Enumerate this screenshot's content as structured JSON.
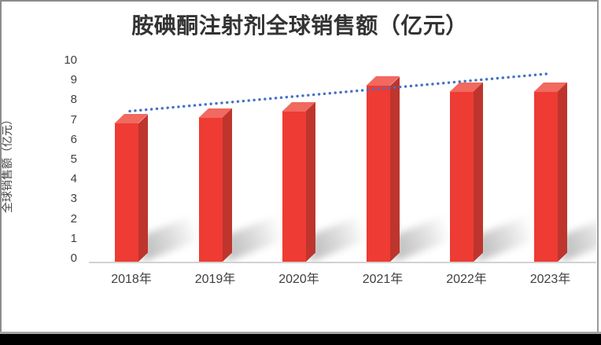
{
  "chart_data": {
    "type": "bar",
    "title": "胺碘酮注射剂全球销售额（亿元）",
    "ylabel": "全球销售额（亿元）",
    "categories": [
      "2018年",
      "2019年",
      "2020年",
      "2021年",
      "2022年",
      "2023年"
    ],
    "values": [
      7.0,
      7.3,
      7.6,
      8.9,
      8.6,
      8.6
    ],
    "ylim": [
      0,
      10
    ],
    "yticks": [
      0,
      1,
      2,
      3,
      4,
      5,
      6,
      7,
      8,
      9,
      10
    ],
    "grid": false,
    "legend_position": "none",
    "bar_style": "3d",
    "trendline": {
      "type": "linear",
      "style": "dotted",
      "color": "#4472C4",
      "start_value": 7.6,
      "end_value": 9.5
    },
    "colors": {
      "bar_front": "#EE3B33",
      "bar_side": "#BE352D",
      "bar_top": "#F1695F",
      "axis_line": "#D2D2D2",
      "tick_text": "#3F3F3F",
      "title_text": "#333333",
      "shadow": "#9E9E9E",
      "frame_border": "#8C8C8C",
      "bottom_bar": "#000000"
    }
  }
}
